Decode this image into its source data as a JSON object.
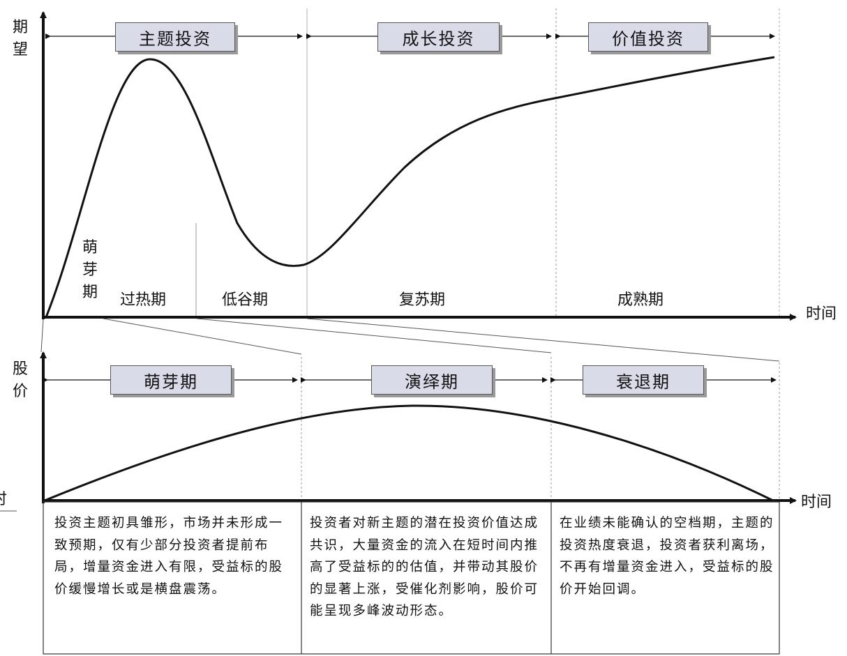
{
  "top_chart": {
    "y_label": "期望",
    "x_label": "时间",
    "strategy_phases": [
      "主题投资",
      "成长投资",
      "价值投资"
    ],
    "stages": {
      "germination": "萌芽期",
      "overheat": "过热期",
      "trough": "低谷期",
      "recovery": "复苏期",
      "maturity": "成熟期"
    }
  },
  "bottom_chart": {
    "y_label": "股价",
    "x_label": "时间",
    "left_edge_fragment": "时",
    "phases": [
      "萌芽期",
      "演绎期",
      "衰退期"
    ]
  },
  "descriptions": [
    "投资主题初具雏形，市场并未形成一致预期，仅有少部分投资者提前布局，增量资金进入有限，受益标的股价缓慢增长或是横盘震荡。",
    "投资者对新主题的潜在投资价值达成共识，大量资金的流入在短时间内推高了受益标的的估值，并带动其股价的显著上涨，受催化剂影响，股价可能呈现多峰波动形态。",
    "在业绩未能确认的空档期，主题的投资热度衰退，投资者获利离场，不再有增量资金进入，受益标的股价开始回调。"
  ]
}
